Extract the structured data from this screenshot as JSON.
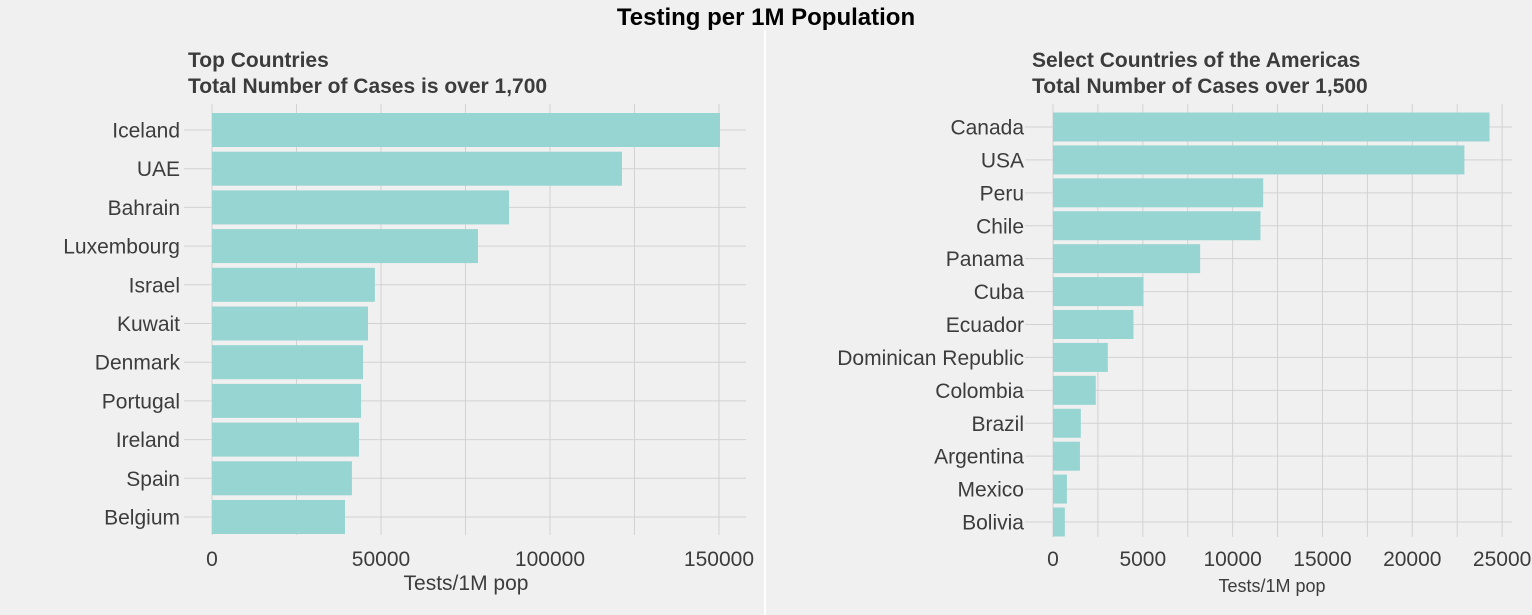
{
  "title": "Testing per 1M Population",
  "colors": {
    "bar": "#97d5d2",
    "grid": "#d2d2d2",
    "background": "#f0f0f0",
    "text": "#3c3c3c"
  },
  "chart_data": [
    {
      "type": "bar",
      "orientation": "horizontal",
      "title": "Top Countries",
      "subtitle": "Total Number of Cases is over 1,700",
      "xlabel": "Tests/1M pop",
      "ylabel": "",
      "xlim": [
        0,
        158000
      ],
      "xticks": [
        0,
        50000,
        100000,
        150000
      ],
      "xtick_labels": [
        "0",
        "50000",
        "100000",
        "150000"
      ],
      "grid": true,
      "categories": [
        "Iceland",
        "UAE",
        "Bahrain",
        "Luxembourg",
        "Israel",
        "Kuwait",
        "Denmark",
        "Portugal",
        "Ireland",
        "Spain",
        "Belgium"
      ],
      "values": [
        150300,
        121300,
        87900,
        78700,
        48200,
        46150,
        44700,
        44100,
        43500,
        41400,
        39350
      ]
    },
    {
      "type": "bar",
      "orientation": "horizontal",
      "title": "Select Countries of the Americas",
      "subtitle": "Total Number of Cases over 1,500",
      "xlabel": "Tests/1M pop",
      "ylabel": "",
      "xlim": [
        0,
        25550
      ],
      "xticks": [
        0,
        5000,
        10000,
        15000,
        20000,
        25000
      ],
      "xtick_labels": [
        "0",
        "5000",
        "10000",
        "15000",
        "20000",
        "25000"
      ],
      "grid": true,
      "categories": [
        "Canada",
        "USA",
        "Peru",
        "Chile",
        "Panama",
        "Cuba",
        "Ecuador",
        "Dominican Republic",
        "Colombia",
        "Brazil",
        "Argentina",
        "Mexico",
        "Bolivia"
      ],
      "values": [
        24300,
        22900,
        11700,
        11550,
        8190,
        5040,
        4480,
        3050,
        2380,
        1550,
        1500,
        775,
        660
      ]
    }
  ]
}
